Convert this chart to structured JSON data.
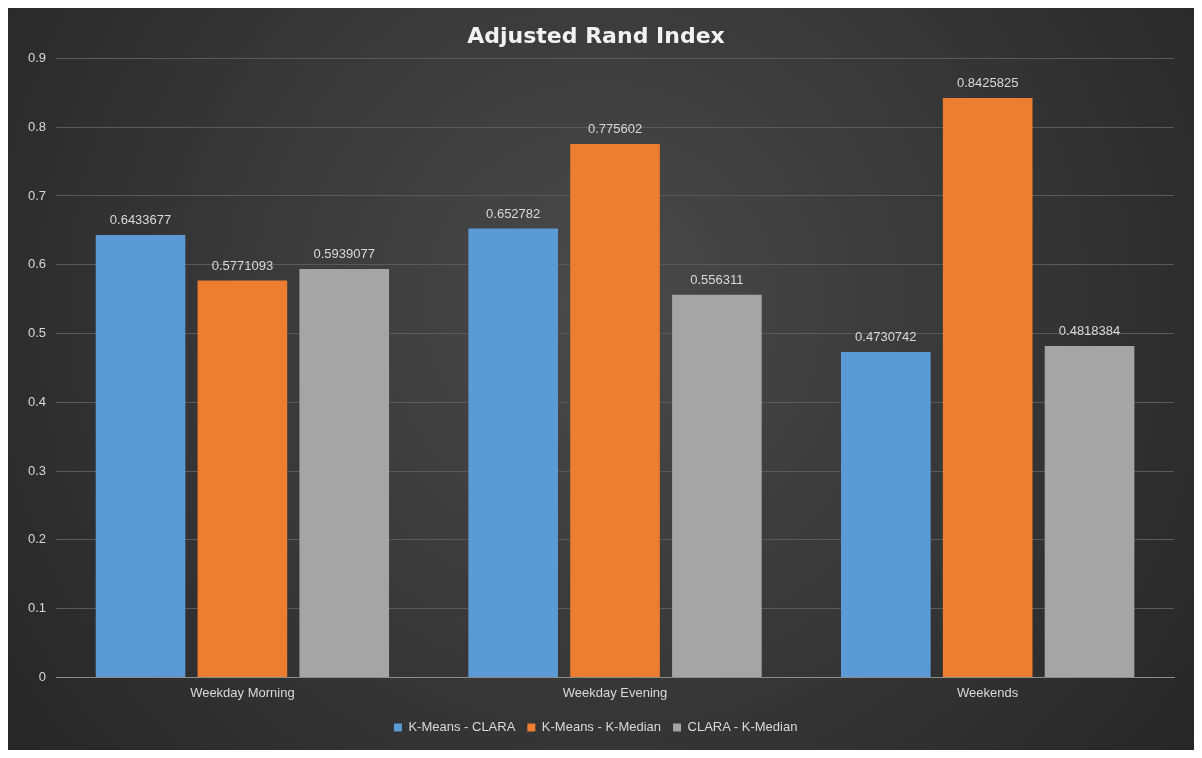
{
  "chart_data": {
    "type": "bar",
    "title": "Adjusted Rand Index",
    "categories": [
      "Weekday Morning",
      "Weekday Evening",
      "Weekends"
    ],
    "series": [
      {
        "name": "K-Means - CLARA",
        "color": "#5b9bd5",
        "values": [
          0.6433677,
          0.652782,
          0.4730742
        ]
      },
      {
        "name": "K-Means - K-Median",
        "color": "#ed7d31",
        "values": [
          0.5771093,
          0.775602,
          0.8425825
        ]
      },
      {
        "name": "CLARA - K-Median",
        "color": "#a5a5a5",
        "values": [
          0.5939077,
          0.556311,
          0.4818384
        ]
      }
    ],
    "ylim": [
      0,
      0.9
    ],
    "yticks": [
      0,
      0.1,
      0.2,
      0.3,
      0.4,
      0.5,
      0.6,
      0.7,
      0.8,
      0.9
    ],
    "grid": "y",
    "legend": "bottom",
    "data_labels": true
  }
}
